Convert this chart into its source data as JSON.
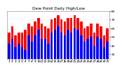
{
  "title": "Dew Point Daily High/Low",
  "background_color": "#ffffff",
  "bar_color_high": "#ff0000",
  "bar_color_low": "#0000ff",
  "days": [
    1,
    2,
    3,
    4,
    5,
    6,
    7,
    8,
    9,
    10,
    11,
    12,
    13,
    14,
    15,
    16,
    17,
    18,
    19,
    20,
    21,
    22,
    23,
    24,
    25,
    26,
    27,
    28,
    29,
    30,
    31
  ],
  "highs": [
    55,
    62,
    52,
    55,
    55,
    58,
    65,
    62,
    68,
    72,
    65,
    62,
    60,
    70,
    72,
    75,
    70,
    68,
    72,
    72,
    75,
    72,
    68,
    60,
    62,
    65,
    55,
    65,
    62,
    52,
    60
  ],
  "lows": [
    42,
    48,
    38,
    42,
    38,
    35,
    52,
    45,
    52,
    58,
    48,
    48,
    42,
    55,
    58,
    62,
    55,
    52,
    58,
    55,
    60,
    58,
    52,
    45,
    48,
    50,
    40,
    50,
    48,
    38,
    45
  ],
  "ylim_min": 25,
  "ylim_max": 80,
  "yticks": [
    30,
    40,
    50,
    60,
    70,
    80
  ],
  "tick_fontsize": 3.2,
  "title_fontsize": 4.2,
  "bar_width": 0.75
}
